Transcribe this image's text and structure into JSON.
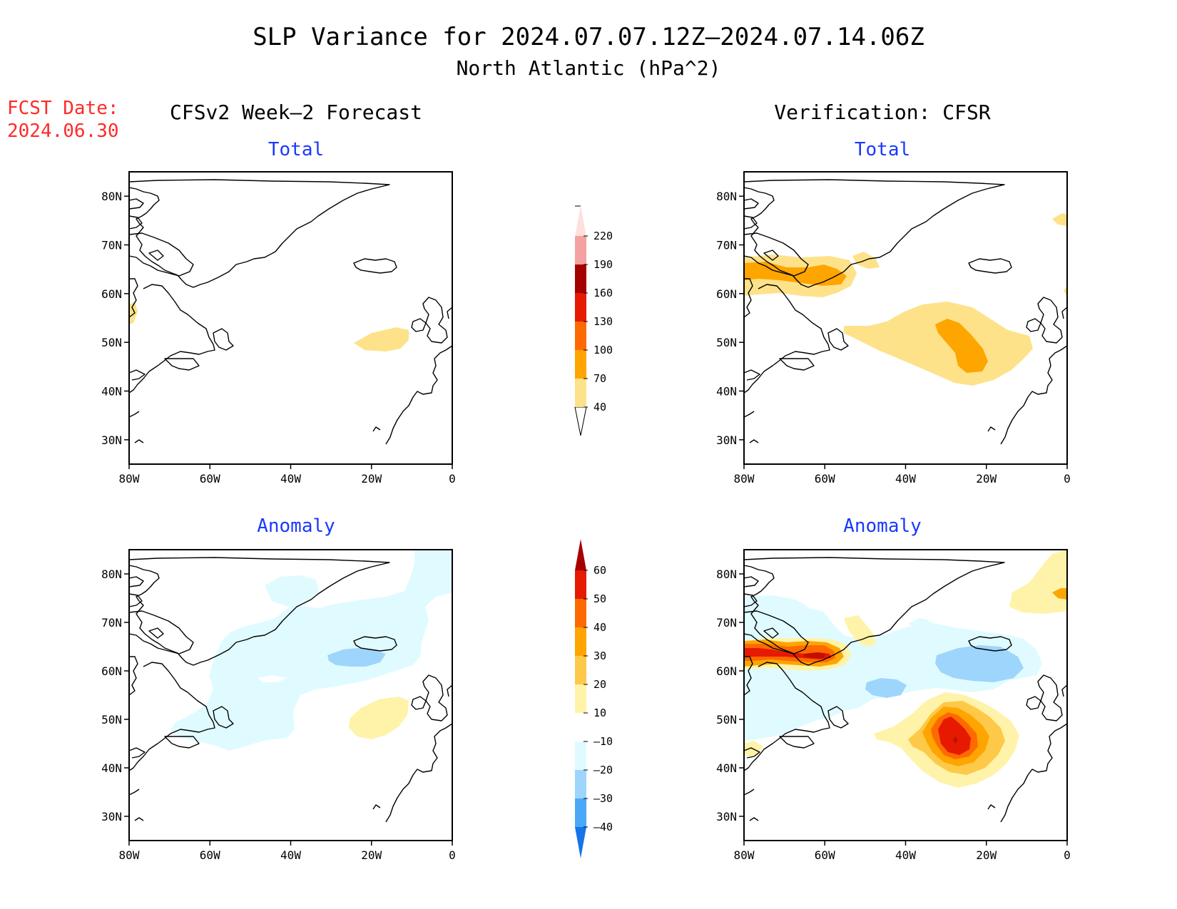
{
  "header": {
    "title": "SLP Variance for 2024.07.07.12Z—2024.07.14.06Z",
    "subtitle": "North Atlantic (hPa^2)"
  },
  "fcst_date": {
    "line1": "FCST Date:",
    "line2": "2024.06.30"
  },
  "columns": {
    "left": "CFSv2 Week—2 Forecast",
    "right": "Verification: CFSR"
  },
  "panels": {
    "fc_total": {
      "label": "Total"
    },
    "ver_total": {
      "label": "Total"
    },
    "fc_anom": {
      "label": "Anomaly"
    },
    "ver_anom": {
      "label": "Anomaly"
    }
  },
  "axes": {
    "lat_ticks": [
      "80N",
      "70N",
      "60N",
      "50N",
      "40N",
      "30N"
    ],
    "lon_ticks": [
      "80W",
      "60W",
      "40W",
      "20W",
      "0"
    ]
  },
  "colorbars": {
    "total": {
      "levels": [
        "40",
        "70",
        "100",
        "130",
        "160",
        "190",
        "220"
      ],
      "colors": [
        "#fee28a",
        "#fea500",
        "#fe6a00",
        "#e51a00",
        "#a50000",
        "#f3a1a1",
        "#fde0dc"
      ]
    },
    "anomaly": {
      "levels": [
        "60",
        "50",
        "40",
        "30",
        "20",
        "10",
        "—10",
        "—20",
        "—30",
        "—40"
      ],
      "colors": [
        "#a50000",
        "#e51a00",
        "#fe6a00",
        "#fea500",
        "#fec948",
        "#fef3a8",
        "#ffffff",
        "#e0fbff",
        "#9ed5fc",
        "#4aa8f8",
        "#1773e8"
      ]
    }
  },
  "legend_colors": {
    "y1": "#fee28a",
    "o1": "#fea500",
    "o2": "#fe6a00",
    "r1": "#e51a00",
    "r2": "#c40f00",
    "b1": "#e0fbff",
    "b2": "#9ed5fc",
    "ay1": "#fef3a8",
    "ay2": "#fec948"
  }
}
